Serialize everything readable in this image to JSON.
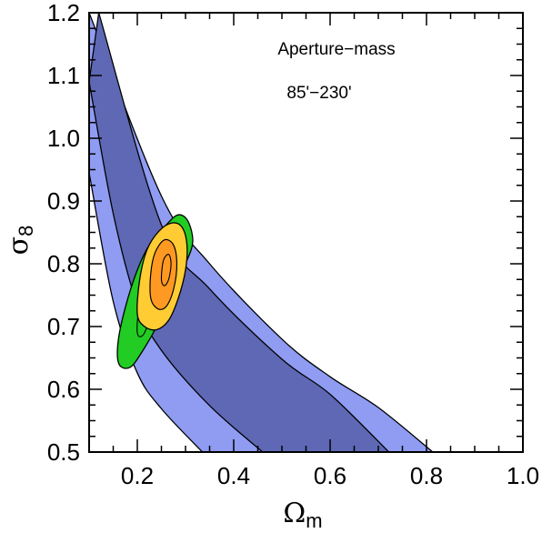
{
  "chart_data": {
    "type": "area",
    "xlim": [
      0.1,
      1.0
    ],
    "ylim": [
      0.5,
      1.2
    ],
    "x_ticks": [
      "0.2",
      "0.4",
      "0.6",
      "0.8",
      "1.0"
    ],
    "y_ticks": [
      "0.5",
      "0.6",
      "0.7",
      "0.8",
      "0.9",
      "1.0",
      "1.1",
      "1.2"
    ],
    "xlabel": {
      "symbol": "Ω",
      "subscript": "m"
    },
    "ylabel": {
      "symbol": "σ",
      "subscript": "8"
    },
    "grid": false,
    "annotations": [
      "Aperture−mass",
      "85'−230'"
    ],
    "colors": {
      "outer_band": "#8f9cf2",
      "inner_band": "#5e68b4",
      "green_contour": "#22cc22",
      "yellow_contour": "#ffcc33",
      "orange_contour": "#ff9922",
      "outline": "#000000"
    },
    "series": [
      {
        "kind": "band-outer",
        "upper": [
          [
            0.1,
            1.2
          ],
          [
            0.25,
            0.908
          ],
          [
            0.35,
            0.8
          ],
          [
            0.5,
            0.68
          ],
          [
            0.6,
            0.62
          ],
          [
            0.7,
            0.571
          ],
          [
            0.813,
            0.5
          ]
        ],
        "lower": [
          [
            0.335,
            0.5
          ],
          [
            0.25,
            0.569
          ],
          [
            0.2,
            0.626
          ],
          [
            0.15,
            0.74
          ],
          [
            0.1,
            0.945
          ]
        ]
      },
      {
        "kind": "band-inner",
        "upper": [
          [
            0.12,
            1.2
          ],
          [
            0.25,
            0.862
          ],
          [
            0.35,
            0.76
          ],
          [
            0.5,
            0.648
          ],
          [
            0.6,
            0.592
          ],
          [
            0.722,
            0.5
          ]
        ],
        "lower": [
          [
            0.46,
            0.5
          ],
          [
            0.35,
            0.574
          ],
          [
            0.25,
            0.662
          ],
          [
            0.2,
            0.735
          ],
          [
            0.15,
            0.88
          ],
          [
            0.1,
            1.09
          ]
        ]
      },
      {
        "kind": "contour-green",
        "points": [
          [
            0.162,
            0.64
          ],
          [
            0.16,
            0.675
          ],
          [
            0.175,
            0.73
          ],
          [
            0.2,
            0.79
          ],
          [
            0.225,
            0.83
          ],
          [
            0.26,
            0.862
          ],
          [
            0.285,
            0.878
          ],
          [
            0.305,
            0.868
          ],
          [
            0.315,
            0.835
          ],
          [
            0.3,
            0.8
          ],
          [
            0.27,
            0.752
          ],
          [
            0.24,
            0.7
          ],
          [
            0.21,
            0.66
          ],
          [
            0.185,
            0.635
          ]
        ]
      },
      {
        "kind": "contour-green-inner",
        "points": [
          [
            0.2,
            0.69
          ],
          [
            0.205,
            0.74
          ],
          [
            0.222,
            0.79
          ],
          [
            0.24,
            0.81
          ],
          [
            0.25,
            0.79
          ],
          [
            0.235,
            0.74
          ],
          [
            0.215,
            0.69
          ]
        ]
      },
      {
        "kind": "contour-yellow",
        "points": [
          [
            0.2,
            0.72
          ],
          [
            0.205,
            0.775
          ],
          [
            0.22,
            0.822
          ],
          [
            0.245,
            0.852
          ],
          [
            0.272,
            0.865
          ],
          [
            0.293,
            0.858
          ],
          [
            0.303,
            0.83
          ],
          [
            0.3,
            0.79
          ],
          [
            0.285,
            0.745
          ],
          [
            0.265,
            0.71
          ],
          [
            0.24,
            0.695
          ],
          [
            0.215,
            0.7
          ]
        ]
      },
      {
        "kind": "contour-orange",
        "points": [
          [
            0.228,
            0.745
          ],
          [
            0.228,
            0.785
          ],
          [
            0.237,
            0.818
          ],
          [
            0.256,
            0.838
          ],
          [
            0.275,
            0.83
          ],
          [
            0.282,
            0.8
          ],
          [
            0.276,
            0.762
          ],
          [
            0.261,
            0.733
          ],
          [
            0.243,
            0.728
          ]
        ]
      },
      {
        "kind": "contour-orange-inner",
        "points": [
          [
            0.25,
            0.775
          ],
          [
            0.254,
            0.805
          ],
          [
            0.265,
            0.815
          ],
          [
            0.27,
            0.8
          ],
          [
            0.265,
            0.775
          ],
          [
            0.256,
            0.765
          ]
        ]
      }
    ]
  }
}
